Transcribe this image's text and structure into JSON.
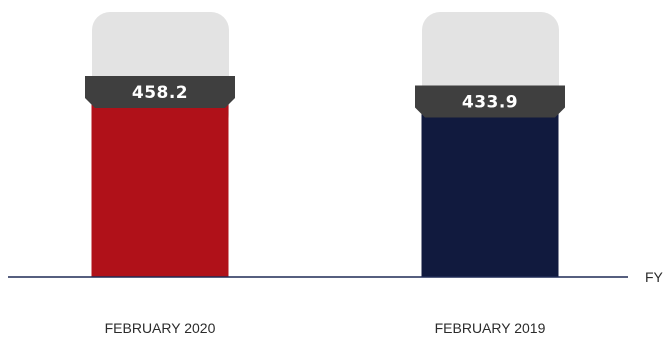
{
  "chart_data": {
    "type": "bar",
    "categories": [
      "FEBRUARY 2020",
      "FEBRUARY 2019"
    ],
    "values": [
      458.2,
      433.9
    ],
    "value_labels": [
      "458.2",
      "433.9"
    ],
    "x_unit": "FY",
    "title": "",
    "xlabel": "",
    "ylabel": "",
    "grid": false,
    "colors": {
      "bars": [
        "#b01119",
        "#111a3e"
      ],
      "label_box": "#3f3f3f",
      "background_cap": "#e3e3e3",
      "axis": "#1f2a55"
    }
  }
}
